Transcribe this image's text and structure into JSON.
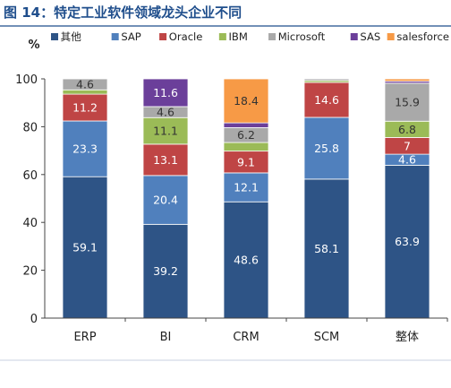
{
  "chart_data": {
    "type": "bar",
    "stacked": true,
    "title": "图 14：特定工业软件领域龙头企业不同",
    "ylabel": "%",
    "xlabel": "",
    "ylim": [
      0,
      100
    ],
    "yticks": [
      0,
      20,
      40,
      60,
      80,
      100
    ],
    "grid": false,
    "legend_position": "top",
    "categories": [
      "ERP",
      "BI",
      "CRM",
      "SCM",
      "整体"
    ],
    "series": [
      {
        "name": "其他",
        "color": "#2e5486",
        "values": [
          59.1,
          39.2,
          48.6,
          58.1,
          63.9
        ],
        "labels": [
          "59.1",
          "39.2",
          "48.6",
          "58.1",
          "63.9"
        ]
      },
      {
        "name": "SAP",
        "color": "#5080bd",
        "values": [
          23.3,
          20.4,
          12.1,
          25.8,
          4.6
        ],
        "labels": [
          "23.3",
          "20.4",
          "12.1",
          "25.8",
          "4.6"
        ]
      },
      {
        "name": "Oracle",
        "color": "#bf4545",
        "values": [
          11.2,
          13.1,
          9.1,
          14.6,
          7
        ],
        "labels": [
          "11.2",
          "13.1",
          "9.1",
          "14.6",
          "7"
        ]
      },
      {
        "name": "IBM",
        "color": "#9bbb57",
        "values": [
          1.8,
          11.1,
          3.6,
          0.8,
          6.8
        ],
        "labels": [
          "",
          "11.1",
          "",
          "",
          "6.8"
        ]
      },
      {
        "name": "Microsoft",
        "color": "#a9a9a9",
        "values": [
          4.6,
          4.6,
          6.2,
          0.7,
          15.9
        ],
        "labels": [
          "4.6",
          "4.6",
          "6.2",
          "",
          "15.9"
        ]
      },
      {
        "name": "SAS",
        "color": "#6b3f9a",
        "values": [
          0,
          11.6,
          2,
          0,
          0.8
        ],
        "labels": [
          "",
          "11.6",
          "",
          "",
          ""
        ]
      },
      {
        "name": "salesforce",
        "color": "#f79a46",
        "values": [
          0,
          0,
          18.4,
          0,
          1
        ],
        "labels": [
          "",
          "",
          "18.4",
          "",
          ""
        ]
      }
    ]
  }
}
